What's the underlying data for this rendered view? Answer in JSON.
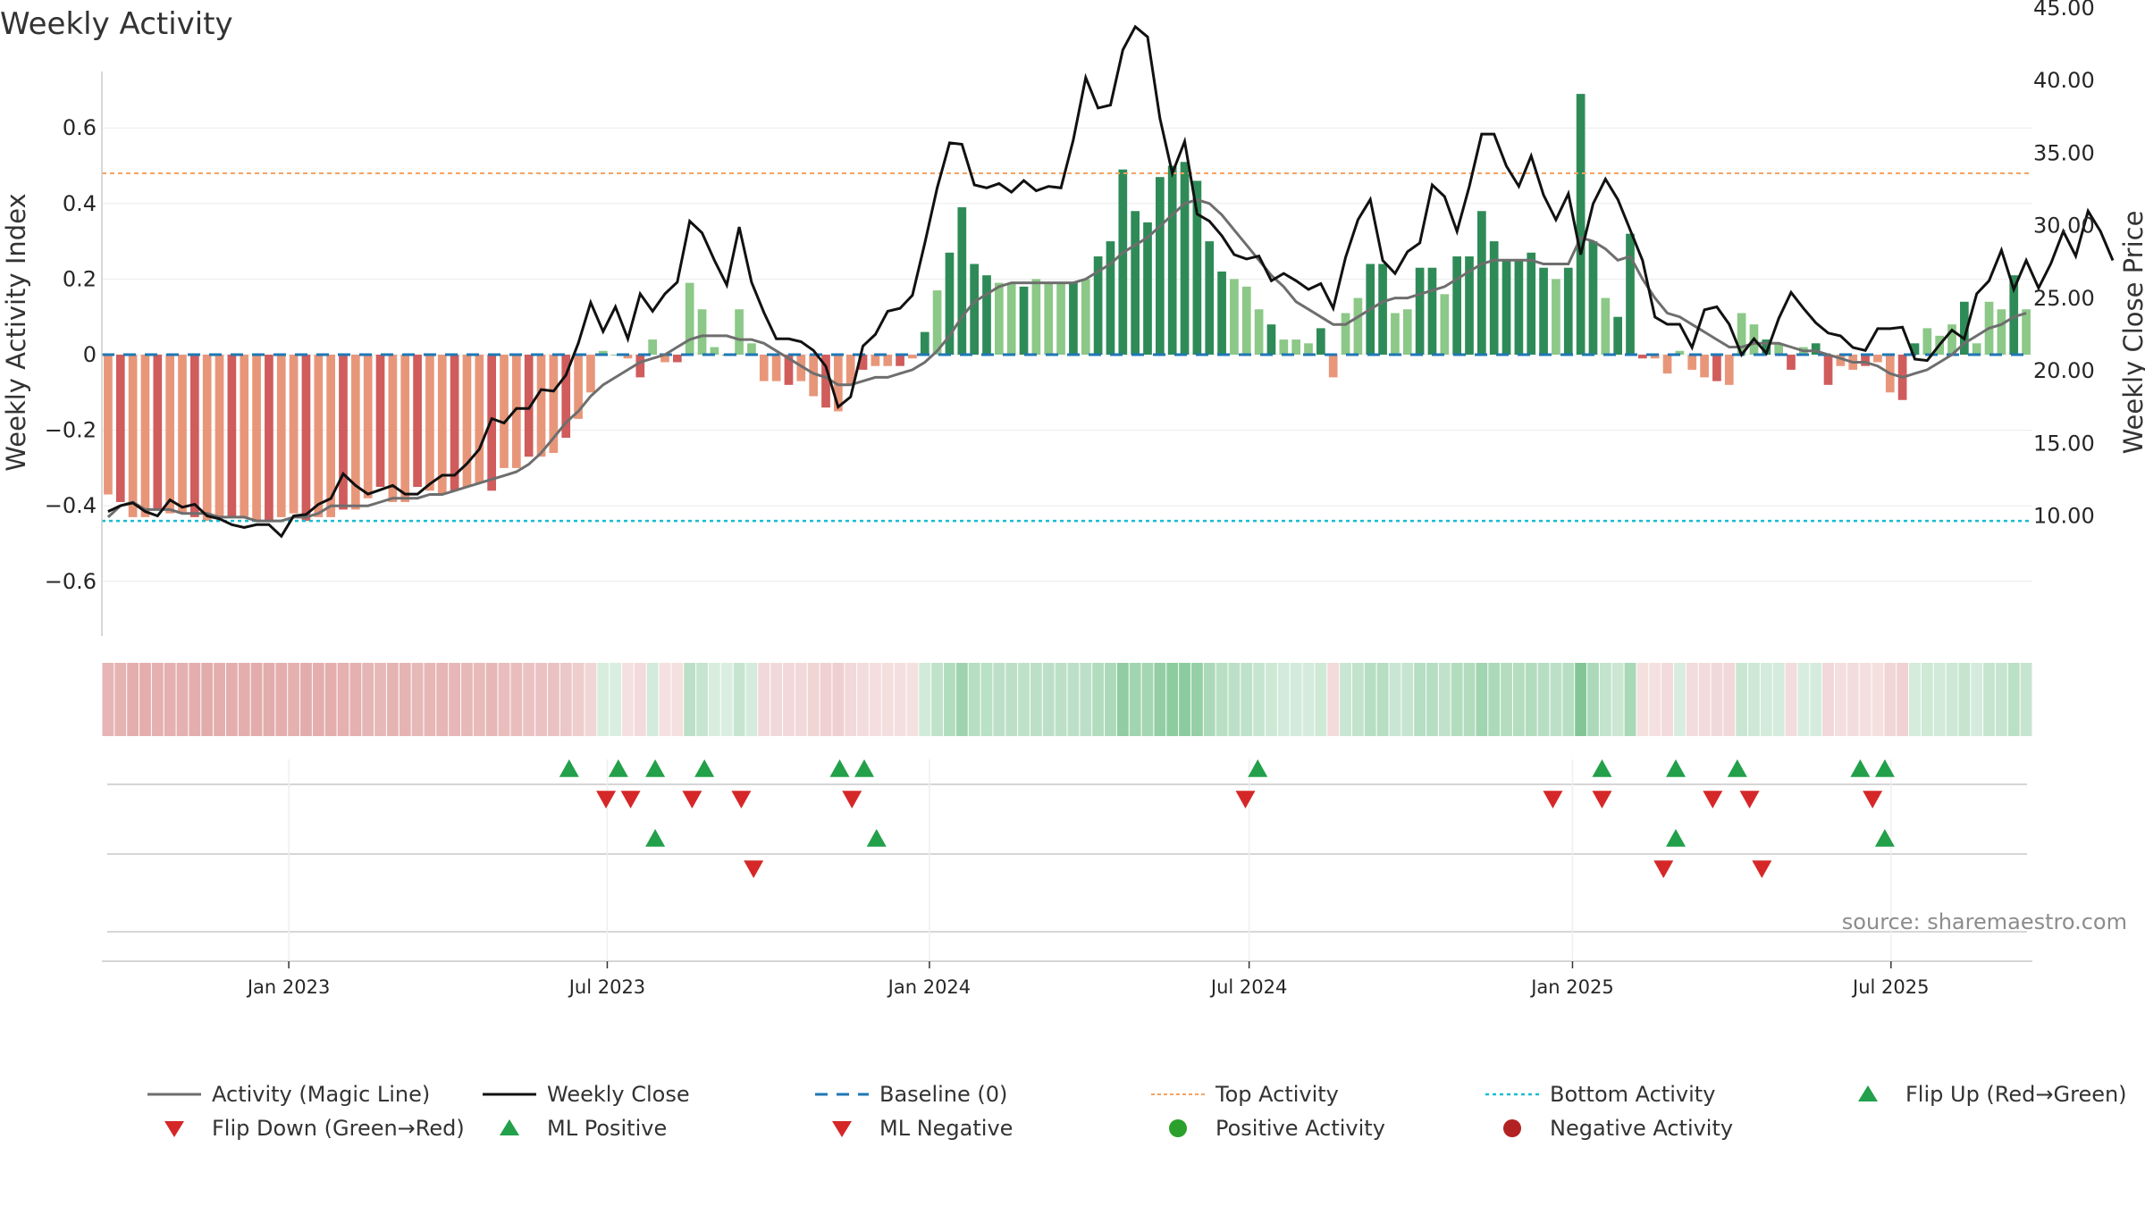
{
  "chart_data": {
    "type": "bar",
    "title": "Weekly Activity",
    "ylabel_left": "Weekly Activity Index",
    "ylabel_right": "Weekly Close Price",
    "source": "source: sharemaestro.com",
    "ylim_left": [
      -0.75,
      0.75
    ],
    "ylim_right": [
      5,
      45.6
    ],
    "yticks_left": [
      "0.6",
      "0.4",
      "0.2",
      "0",
      "−0.2",
      "−0.4",
      "−0.6"
    ],
    "yticks_left_values": [
      0.6,
      0.4,
      0.2,
      0,
      -0.2,
      -0.4,
      -0.6
    ],
    "yticks_right": [
      "45.00",
      "40.00",
      "35.00",
      "30.00",
      "25.00",
      "20.00",
      "15.00",
      "10.00"
    ],
    "yticks_right_values": [
      45,
      40,
      35,
      30,
      25,
      20,
      15,
      10
    ],
    "x_range_weeks": [
      0,
      157
    ],
    "xticks": [
      {
        "label": "Jan 2023",
        "week": 15.2
      },
      {
        "label": "Jul 2023",
        "week": 41.1
      },
      {
        "label": "Jan 2024",
        "week": 67.3
      },
      {
        "label": "Jul 2024",
        "week": 93.3
      },
      {
        "label": "Jan 2025",
        "week": 119.6
      },
      {
        "label": "Jul 2025",
        "week": 145.5
      }
    ],
    "top_activity": 0.48,
    "bottom_activity": -0.44,
    "baseline": 0,
    "activity": [
      -0.37,
      -0.39,
      -0.43,
      -0.43,
      -0.41,
      -0.42,
      -0.42,
      -0.43,
      -0.44,
      -0.43,
      -0.43,
      -0.43,
      -0.44,
      -0.44,
      -0.43,
      -0.42,
      -0.44,
      -0.43,
      -0.43,
      -0.41,
      -0.41,
      -0.38,
      -0.35,
      -0.39,
      -0.39,
      -0.35,
      -0.36,
      -0.37,
      -0.36,
      -0.35,
      -0.34,
      -0.36,
      -0.3,
      -0.3,
      -0.27,
      -0.27,
      -0.26,
      -0.22,
      -0.17,
      -0.1,
      0.01,
      0.0,
      -0.01,
      -0.06,
      0.04,
      -0.02,
      -0.02,
      0.19,
      0.12,
      0.02,
      0.0,
      0.12,
      0.03,
      -0.07,
      -0.07,
      -0.08,
      -0.07,
      -0.11,
      -0.14,
      -0.15,
      -0.08,
      -0.04,
      -0.03,
      -0.03,
      -0.03,
      -0.01,
      0.06,
      0.17,
      0.27,
      0.39,
      0.24,
      0.21,
      0.19,
      0.19,
      0.18,
      0.2,
      0.19,
      0.19,
      0.19,
      0.2,
      0.26,
      0.3,
      0.49,
      0.38,
      0.35,
      0.47,
      0.5,
      0.51,
      0.46,
      0.3,
      0.22,
      0.2,
      0.18,
      0.12,
      0.08,
      0.04,
      0.04,
      0.03,
      0.07,
      -0.06,
      0.11,
      0.15,
      0.24,
      0.24,
      0.11,
      0.12,
      0.23,
      0.23,
      0.16,
      0.26,
      0.26,
      0.38,
      0.3,
      0.25,
      0.25,
      0.27,
      0.23,
      0.2,
      0.23,
      0.69,
      0.3,
      0.15,
      0.1,
      0.32,
      -0.01,
      -0.01,
      -0.05,
      0.01,
      -0.04,
      -0.06,
      -0.07,
      -0.08,
      0.11,
      0.08,
      0.04,
      0.03,
      -0.04,
      0.02,
      0.03,
      -0.08,
      -0.03,
      -0.04,
      -0.03,
      -0.02,
      -0.1,
      -0.12,
      0.03,
      0.07,
      0.05,
      0.08,
      0.14,
      0.03,
      0.14,
      0.12,
      0.21,
      0.12
    ],
    "magic_line": [
      -0.43,
      -0.4,
      -0.39,
      -0.41,
      -0.41,
      -0.41,
      -0.42,
      -0.42,
      -0.42,
      -0.43,
      -0.43,
      -0.43,
      -0.44,
      -0.44,
      -0.44,
      -0.43,
      -0.43,
      -0.42,
      -0.4,
      -0.4,
      -0.4,
      -0.4,
      -0.39,
      -0.38,
      -0.38,
      -0.38,
      -0.37,
      -0.37,
      -0.36,
      -0.35,
      -0.34,
      -0.33,
      -0.32,
      -0.31,
      -0.29,
      -0.26,
      -0.22,
      -0.18,
      -0.15,
      -0.11,
      -0.08,
      -0.06,
      -0.04,
      -0.02,
      -0.01,
      0.0,
      0.02,
      0.04,
      0.05,
      0.05,
      0.05,
      0.04,
      0.04,
      0.03,
      0.01,
      -0.01,
      -0.03,
      -0.05,
      -0.06,
      -0.08,
      -0.08,
      -0.07,
      -0.06,
      -0.06,
      -0.05,
      -0.04,
      -0.02,
      0.01,
      0.05,
      0.1,
      0.14,
      0.16,
      0.18,
      0.19,
      0.19,
      0.19,
      0.19,
      0.19,
      0.19,
      0.2,
      0.22,
      0.24,
      0.27,
      0.29,
      0.31,
      0.34,
      0.37,
      0.4,
      0.41,
      0.4,
      0.37,
      0.33,
      0.29,
      0.25,
      0.21,
      0.18,
      0.14,
      0.12,
      0.1,
      0.08,
      0.08,
      0.1,
      0.12,
      0.14,
      0.15,
      0.15,
      0.16,
      0.17,
      0.18,
      0.2,
      0.22,
      0.24,
      0.25,
      0.25,
      0.25,
      0.25,
      0.24,
      0.24,
      0.24,
      0.31,
      0.3,
      0.28,
      0.25,
      0.26,
      0.2,
      0.15,
      0.11,
      0.1,
      0.08,
      0.06,
      0.04,
      0.02,
      0.02,
      0.03,
      0.03,
      0.03,
      0.02,
      0.01,
      0.01,
      0.0,
      -0.01,
      -0.02,
      -0.02,
      -0.03,
      -0.05,
      -0.06,
      -0.05,
      -0.04,
      -0.02,
      0.0,
      0.03,
      0.05,
      0.07,
      0.08,
      0.1,
      0.11
    ],
    "weekly_close": [
      10.3,
      10.7,
      10.9,
      10.3,
      10.0,
      11.1,
      10.6,
      10.8,
      10.0,
      9.8,
      9.4,
      9.2,
      9.4,
      9.4,
      8.6,
      10.0,
      10.1,
      10.8,
      11.2,
      12.9,
      12.1,
      11.5,
      11.8,
      12.1,
      11.5,
      11.5,
      12.2,
      12.8,
      12.8,
      13.6,
      14.6,
      16.7,
      16.4,
      17.4,
      17.4,
      18.7,
      18.6,
      19.7,
      21.9,
      24.7,
      22.7,
      24.4,
      22.2,
      25.3,
      24.1,
      25.3,
      26.1,
      30.3,
      29.5,
      27.6,
      25.9,
      29.9,
      26.1,
      24.0,
      22.2,
      22.2,
      22.0,
      21.4,
      20.3,
      17.5,
      18.2,
      21.7,
      22.5,
      24.1,
      24.3,
      25.2,
      28.8,
      32.6,
      35.7,
      35.6,
      32.8,
      32.6,
      32.9,
      32.3,
      33.1,
      32.4,
      32.7,
      32.6,
      35.9,
      40.2,
      38.1,
      38.3,
      42.1,
      43.7,
      43.0,
      37.4,
      33.6,
      35.8,
      30.8,
      30.3,
      29.3,
      28.0,
      27.7,
      27.9,
      26.2,
      26.7,
      26.2,
      25.6,
      26.0,
      24.3,
      27.8,
      30.4,
      31.8,
      27.6,
      26.7,
      28.2,
      28.8,
      32.8,
      32.0,
      29.6,
      32.7,
      36.3,
      36.3,
      34.1,
      32.7,
      34.8,
      32.1,
      30.4,
      32.2,
      28.0,
      31.5,
      33.2,
      31.8,
      29.7,
      27.6,
      23.7,
      23.2,
      23.2,
      21.6,
      24.2,
      24.4,
      23.2,
      21.1,
      22.2,
      21.2,
      23.6,
      25.4,
      24.3,
      23.3,
      22.6,
      22.4,
      21.6,
      21.4,
      22.9,
      22.9,
      23.0,
      20.8,
      20.7,
      21.8,
      22.8,
      22.2,
      25.3,
      26.2,
      28.3,
      25.6,
      27.6,
      25.7,
      27.4,
      29.6,
      27.9,
      31.0,
      29.6,
      27.6
    ],
    "flip_up_weeks": [
      38,
      42,
      45,
      49,
      60,
      62,
      94,
      122,
      128,
      133,
      143,
      145
    ],
    "flip_down_weeks": [
      41,
      43,
      48,
      52,
      61,
      93,
      118,
      122,
      131,
      134,
      144
    ],
    "ml_positive_weeks": [
      45,
      63,
      128,
      145
    ],
    "ml_negative_weeks": [
      53,
      127,
      135
    ],
    "legend": [
      "Activity (Magic Line)",
      "Weekly Close",
      "Baseline (0)",
      "Top Activity",
      "Bottom Activity",
      "Flip Up (Red→Green)",
      "Flip Down (Green→Red)",
      "ML Positive",
      "ML Negative",
      "Positive Activity",
      "Negative Activity"
    ],
    "colors": {
      "pos_dark": "#2e8b57",
      "pos_light": "#8cc887",
      "neg_dark": "#d05c5c",
      "neg_light": "#e8967a",
      "magic_line": "#6e6e6e",
      "close": "#111111",
      "baseline": "#1f77b4",
      "top": "#f4a261",
      "bottom": "#17becf",
      "up": "#22a04a",
      "down": "#d62728",
      "pos_dot": "#2ca02c",
      "neg_dot": "#b22222"
    }
  }
}
